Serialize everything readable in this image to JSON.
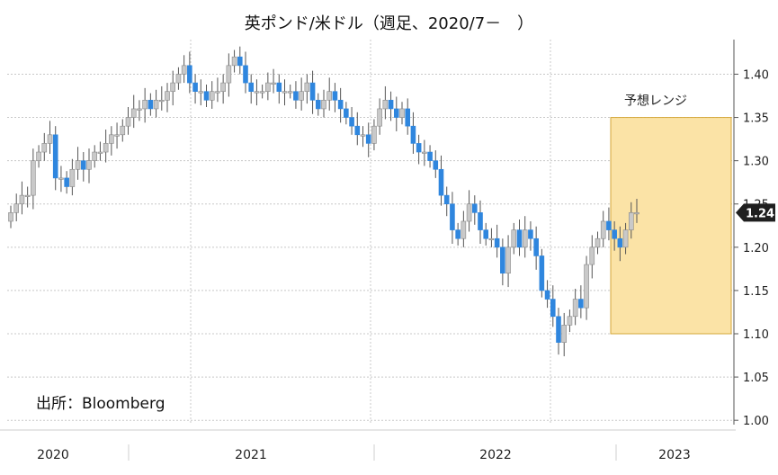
{
  "title": "英ポンド/米ドル（週足、2020/7－　）",
  "source": "出所：Bloomberg",
  "colors": {
    "up": "#c9c9c9",
    "down": "#2f86de",
    "range_fill": "#fbe3a6",
    "range_border": "#d4a73a",
    "last_badge": "#1f1f1f"
  },
  "chart_data": {
    "type": "candlestick",
    "title": "英ポンド/米ドル（週足、2020/7－　）",
    "xlabel": "",
    "ylabel": "",
    "ylim": [
      0.995,
      1.44
    ],
    "y_ticks": [
      "1.00",
      "1.05",
      "1.10",
      "1.15",
      "1.20",
      "1.25",
      "1.30",
      "1.35",
      "1.40"
    ],
    "x_tick_labels": [
      "2020",
      "2021",
      "2022",
      "2023"
    ],
    "grid": true,
    "last_value_label": "1.24",
    "forecast_range": {
      "label": "予想レンジ",
      "low": 1.1,
      "high": 1.35
    },
    "close": [
      1.24,
      1.25,
      1.26,
      1.26,
      1.3,
      1.31,
      1.32,
      1.33,
      1.28,
      1.28,
      1.27,
      1.29,
      1.3,
      1.29,
      1.3,
      1.31,
      1.31,
      1.32,
      1.33,
      1.33,
      1.34,
      1.35,
      1.36,
      1.36,
      1.37,
      1.36,
      1.37,
      1.37,
      1.38,
      1.39,
      1.4,
      1.41,
      1.39,
      1.38,
      1.38,
      1.37,
      1.38,
      1.38,
      1.39,
      1.41,
      1.42,
      1.41,
      1.39,
      1.38,
      1.38,
      1.38,
      1.39,
      1.39,
      1.38,
      1.38,
      1.38,
      1.37,
      1.38,
      1.39,
      1.37,
      1.36,
      1.37,
      1.38,
      1.37,
      1.36,
      1.35,
      1.34,
      1.33,
      1.33,
      1.32,
      1.34,
      1.36,
      1.37,
      1.36,
      1.35,
      1.36,
      1.34,
      1.32,
      1.31,
      1.31,
      1.3,
      1.29,
      1.26,
      1.25,
      1.22,
      1.21,
      1.23,
      1.25,
      1.24,
      1.22,
      1.21,
      1.21,
      1.2,
      1.17,
      1.2,
      1.22,
      1.2,
      1.22,
      1.21,
      1.19,
      1.15,
      1.14,
      1.12,
      1.09,
      1.11,
      1.12,
      1.14,
      1.13,
      1.18,
      1.2,
      1.21,
      1.23,
      1.22,
      1.21,
      1.2,
      1.22,
      1.24,
      1.24
    ]
  }
}
